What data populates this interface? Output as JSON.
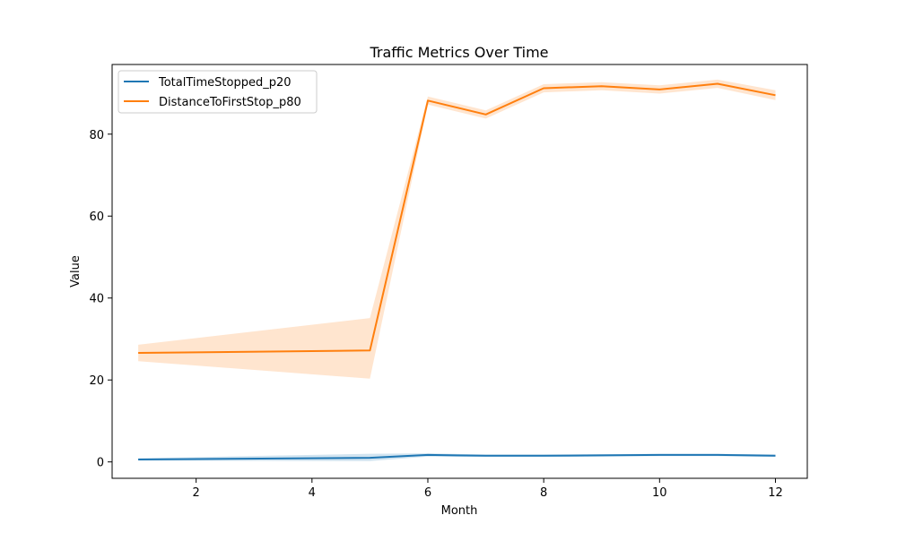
{
  "chart_data": {
    "type": "line",
    "title": "Traffic Metrics Over Time",
    "xlabel": "Month",
    "ylabel": "Value",
    "xlim": [
      0.55,
      12.55
    ],
    "ylim": [
      -4,
      97
    ],
    "xticks": [
      2,
      4,
      6,
      8,
      10,
      12
    ],
    "yticks": [
      0,
      20,
      40,
      60,
      80
    ],
    "grid": false,
    "legend_position": "upper-left",
    "x": [
      1,
      5,
      6,
      7,
      8,
      9,
      10,
      11,
      12
    ],
    "series": [
      {
        "name": "TotalTimeStopped_p20",
        "color": "#1f77b4",
        "values": [
          0.6,
          1.0,
          1.7,
          1.5,
          1.5,
          1.6,
          1.7,
          1.7,
          1.5
        ],
        "ci_lower": [
          0.3,
          0.2,
          1.3,
          1.2,
          1.2,
          1.3,
          1.4,
          1.4,
          1.2
        ],
        "ci_upper": [
          0.9,
          2.0,
          2.1,
          1.8,
          1.8,
          1.9,
          2.0,
          2.0,
          1.8
        ]
      },
      {
        "name": "DistanceToFirstStop_p80",
        "color": "#ff7f0e",
        "values": [
          26.6,
          27.2,
          88.2,
          84.8,
          91.2,
          91.7,
          90.9,
          92.3,
          89.5
        ],
        "ci_lower": [
          24.6,
          20.3,
          87.2,
          83.8,
          90.2,
          90.7,
          89.9,
          91.3,
          88.3
        ],
        "ci_upper": [
          28.6,
          35.1,
          89.2,
          85.8,
          92.2,
          92.7,
          91.9,
          93.3,
          90.7
        ]
      }
    ]
  }
}
